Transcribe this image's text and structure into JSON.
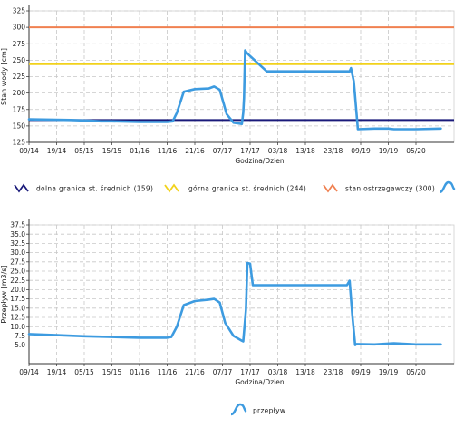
{
  "chart_data": [
    {
      "type": "line",
      "xlabel": "Godzina/Dzien",
      "ylabel": "Stan wody [cm]",
      "ylim": [
        125,
        325
      ],
      "yticks": [
        125,
        150,
        175,
        200,
        225,
        250,
        275,
        300,
        325
      ],
      "ytick_labels": [
        "125",
        "150",
        "175",
        "200",
        "225",
        "250",
        "275",
        "300",
        "325"
      ],
      "xticks": [
        "09/14",
        "19/14",
        "05/15",
        "15/15",
        "01/16",
        "11/16",
        "21/16",
        "07/17",
        "17/17",
        "03/18",
        "13/18",
        "23/18",
        "09/19",
        "19/19",
        "05/20"
      ],
      "grid": true,
      "series": [
        {
          "name": "dolna granica st. średnich (159)",
          "kind": "hline",
          "value": 159,
          "color": "#1a1a7a"
        },
        {
          "name": "górna granica st. średnich (244)",
          "kind": "hline",
          "value": 244,
          "color": "#f2d21b"
        },
        {
          "name": "stan ostrzegawczy (300)",
          "kind": "hline",
          "value": 300,
          "color": "#f08050"
        },
        {
          "name": "",
          "kind": "data",
          "color": "#3d9be0",
          "x": [
            0,
            1.5,
            2.2,
            2.6,
            3,
            4,
            5,
            5.2,
            5.35,
            5.6,
            6,
            6.5,
            6.7,
            6.9,
            7.15,
            7.4,
            7.55,
            7.7,
            7.75,
            7.78,
            7.82,
            7.9,
            8.6,
            9.5,
            11.5,
            11.6,
            11.65,
            11.75,
            11.9,
            12.5,
            13,
            13.2,
            14,
            14.9
          ],
          "y": [
            160,
            159,
            158,
            157,
            157,
            156,
            156,
            157,
            170,
            202,
            206,
            207,
            210,
            205,
            168,
            155,
            154,
            153,
            170,
            193,
            265,
            260,
            233,
            233,
            233,
            233,
            238,
            218,
            145,
            146,
            146,
            145,
            145,
            146
          ]
        }
      ]
    },
    {
      "type": "line",
      "xlabel": "Godzina/Dzien",
      "ylabel": "Przepływ [m3/s]",
      "ylim": [
        0,
        37.5
      ],
      "yticks": [
        5,
        7.5,
        10,
        12.5,
        15,
        17.5,
        20,
        22.5,
        25,
        27.5,
        30,
        32.5,
        35,
        37.5
      ],
      "ytick_labels": [
        "5.0",
        "7.5",
        "10.0",
        "12.5",
        "15.0",
        "17.5",
        "20.0",
        "22.5",
        "25.0",
        "27.5",
        "30.0",
        "32.5",
        "35.0",
        "37.5"
      ],
      "xticks": [
        "09/14",
        "19/14",
        "05/15",
        "15/15",
        "01/16",
        "11/16",
        "21/16",
        "07/17",
        "17/17",
        "03/18",
        "13/18",
        "23/18",
        "09/19",
        "19/19",
        "05/20"
      ],
      "grid": true,
      "series": [
        {
          "name": "przepływ",
          "kind": "data",
          "color": "#3d9be0",
          "x": [
            0,
            1,
            2,
            3,
            4,
            5,
            5.15,
            5.35,
            5.6,
            6,
            6.5,
            6.7,
            6.9,
            7.1,
            7.4,
            7.7,
            7.75,
            7.85,
            7.9,
            8.0,
            8.1,
            9.5,
            11.5,
            11.6,
            11.7,
            11.8,
            11.85,
            12.5,
            13.2,
            14,
            14.9
          ],
          "y": [
            8,
            7.7,
            7.4,
            7.2,
            7,
            7,
            7.2,
            10,
            15.8,
            16.9,
            17.3,
            17.5,
            16.5,
            11,
            7.5,
            6.2,
            6,
            14.5,
            27.2,
            27,
            21.2,
            21.2,
            21.2,
            22.4,
            13,
            5,
            5.3,
            5.2,
            5.5,
            5.2,
            5.2
          ]
        }
      ]
    }
  ]
}
